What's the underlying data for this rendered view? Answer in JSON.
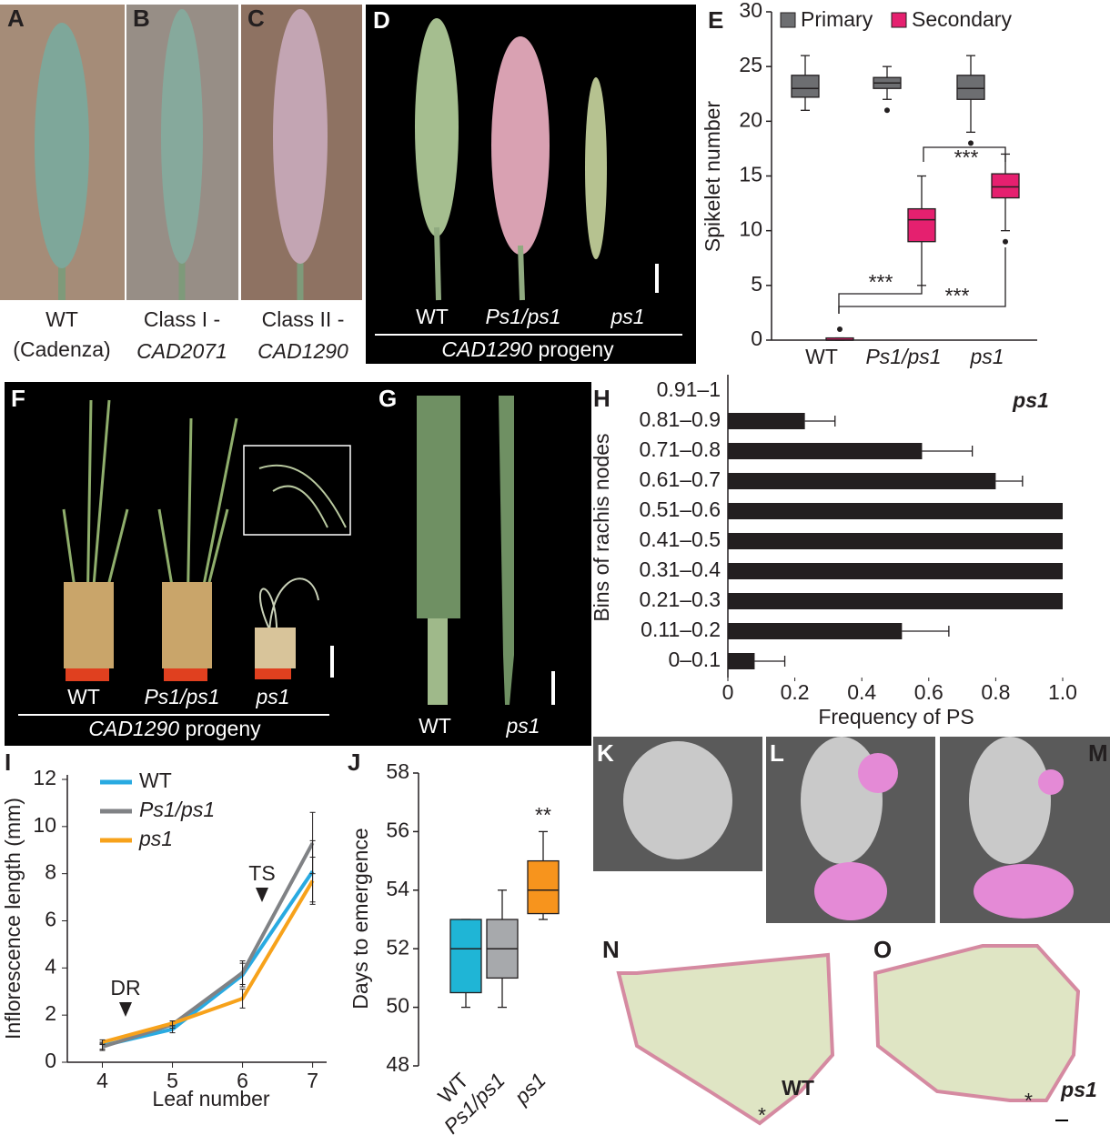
{
  "panels": {
    "A": {
      "letter": "A",
      "caption": [
        "WT",
        "(Cadenza)"
      ]
    },
    "B": {
      "letter": "B",
      "caption": [
        "Class I -",
        "CAD2071"
      ]
    },
    "C": {
      "letter": "C",
      "caption": [
        "Class II -",
        "CAD1290"
      ]
    },
    "D": {
      "letter": "D",
      "labels": [
        "WT",
        "Ps1/ps1",
        "ps1"
      ],
      "progeny": [
        "CAD1290",
        "progeny"
      ]
    },
    "F": {
      "letter": "F",
      "labels": [
        "WT",
        "Ps1/ps1",
        "ps1"
      ],
      "progeny": [
        "CAD1290",
        "progeny"
      ]
    },
    "G": {
      "letter": "G",
      "labels": [
        "WT",
        "ps1"
      ]
    },
    "K": {
      "letter": "K"
    },
    "L": {
      "letter": "L"
    },
    "M": {
      "letter": "M"
    },
    "N": {
      "letter": "N",
      "label": "WT"
    },
    "O": {
      "letter": "O",
      "label": "ps1"
    }
  },
  "chart_data": [
    {
      "letter": "E",
      "type": "box",
      "ylabel": "Spikelet number",
      "categories": [
        "WT",
        "Ps1/ps1",
        "ps1"
      ],
      "ylim": [
        0,
        30
      ],
      "yticks": [
        0,
        5,
        10,
        15,
        20,
        25,
        30
      ],
      "series": [
        {
          "name": "Primary",
          "color": "#6d6e71",
          "boxes": [
            {
              "min": 21,
              "q1": 22.2,
              "median": 23,
              "q3": 24.2,
              "max": 26
            },
            {
              "min": 22,
              "q1": 23,
              "median": 23.5,
              "q3": 24,
              "max": 25,
              "outliers": [
                21
              ]
            },
            {
              "min": 19,
              "q1": 22,
              "median": 23,
              "q3": 24.2,
              "max": 26,
              "outliers": [
                18
              ]
            }
          ]
        },
        {
          "name": "Secondary",
          "color": "#e5206f",
          "boxes": [
            {
              "min": 0,
              "q1": 0,
              "median": 0,
              "q3": 0.2,
              "max": 0.2,
              "outliers": [
                1
              ]
            },
            {
              "min": 5,
              "q1": 9,
              "median": 11,
              "q3": 12,
              "max": 15
            },
            {
              "min": 10,
              "q1": 13,
              "median": 14,
              "q3": 15.2,
              "max": 17,
              "outliers": [
                9
              ]
            }
          ]
        }
      ],
      "annotations": [
        "***",
        "***",
        "***"
      ]
    },
    {
      "letter": "H",
      "type": "hbar",
      "title": "ps1",
      "ylabel": "Bins of rachis nodes",
      "xlabel": "Frequency of PS",
      "categories": [
        "0–0.1",
        "0.11–0.2",
        "0.21–0.3",
        "0.31–0.4",
        "0.41–0.5",
        "0.51–0.6",
        "0.61–0.7",
        "0.71–0.8",
        "0.81–0.9",
        "0.91–1"
      ],
      "values": [
        0.08,
        0.52,
        1.0,
        1.0,
        1.0,
        1.0,
        0.8,
        0.58,
        0.23,
        0
      ],
      "errors": [
        0.09,
        0.14,
        0,
        0,
        0,
        0,
        0.08,
        0.15,
        0.09,
        0
      ],
      "color": "#231f20",
      "xlim": [
        0,
        1
      ],
      "xticks": [
        0,
        0.2,
        0.4,
        0.6,
        0.8,
        {
          "value": 1,
          "label": "1.0"
        }
      ]
    },
    {
      "letter": "I",
      "type": "line",
      "xlabel": "Leaf number",
      "ylabel": "Inflorescence length (mm)",
      "x": [
        4,
        5,
        6,
        7
      ],
      "xlim": [
        3.5,
        7.2
      ],
      "xticks": [
        4,
        5,
        6,
        7
      ],
      "ylim": [
        0,
        12
      ],
      "yticks": [
        0,
        2,
        4,
        6,
        8,
        10,
        12
      ],
      "series": [
        {
          "name": "WT",
          "color": "#29aae1",
          "values": [
            0.7,
            1.4,
            3.7,
            8.1
          ],
          "errors": [
            0.15,
            0.15,
            0.5,
            1.3
          ]
        },
        {
          "name": "Ps1/ps1",
          "color": "#808285",
          "values": [
            0.65,
            1.6,
            3.8,
            9.3
          ],
          "errors": [
            0.15,
            0.15,
            0.5,
            1.3
          ]
        },
        {
          "name": "ps1",
          "color": "#f7a21b",
          "values": [
            0.85,
            1.65,
            2.7,
            7.7
          ],
          "errors": [
            0.1,
            0.1,
            0.4,
            1.0
          ]
        }
      ],
      "annotations": [
        "DR",
        "TS"
      ]
    },
    {
      "letter": "J",
      "type": "box",
      "ylabel": "Days to emergence",
      "categories": [
        "WT",
        "Ps1/ps1",
        "ps1"
      ],
      "ylim": [
        48,
        58
      ],
      "yticks": [
        48,
        50,
        52,
        54,
        56,
        58
      ],
      "series": [
        {
          "colors": [
            "#1fb5d6",
            "#a7a9ac",
            "#f7941d"
          ],
          "boxes": [
            {
              "min": 50,
              "q1": 50.5,
              "median": 52,
              "q3": 53,
              "max": 53
            },
            {
              "min": 50,
              "q1": 51,
              "median": 52,
              "q3": 53,
              "max": 54
            },
            {
              "min": 53,
              "q1": 53.2,
              "median": 54,
              "q3": 55,
              "max": 56
            }
          ]
        }
      ],
      "annotations": [
        "**"
      ]
    }
  ]
}
